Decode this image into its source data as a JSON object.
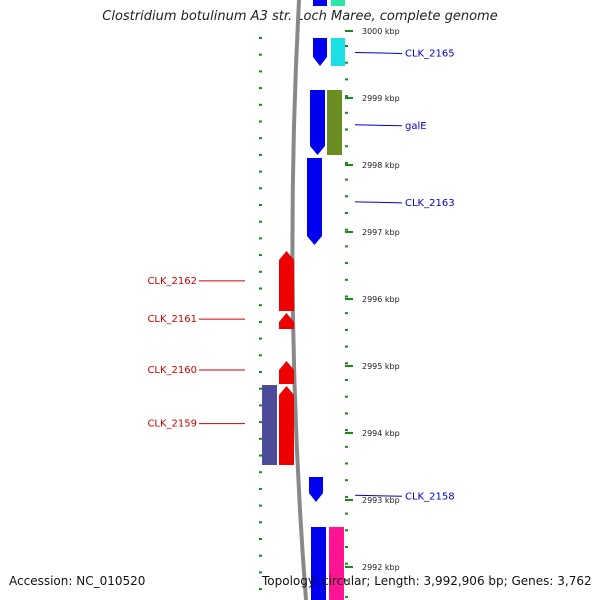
{
  "title": "Clostridium botulinum A3 str. Loch Maree, complete genome",
  "footer": {
    "accession": "Accession: NC_010520",
    "topology": "Topology: circular; Length: 3,992,906 bp; Genes: 3,762"
  },
  "ruler": {
    "unit": "kbp",
    "ticks": [
      {
        "kbp": 3000,
        "label": "3000 kbp"
      },
      {
        "kbp": 2999,
        "label": "2999 kbp"
      },
      {
        "kbp": 2998,
        "label": "2998 kbp"
      },
      {
        "kbp": 2997,
        "label": "2997 kbp"
      },
      {
        "kbp": 2996,
        "label": "2996 kbp"
      },
      {
        "kbp": 2995,
        "label": "2995 kbp"
      },
      {
        "kbp": 2994,
        "label": "2994 kbp"
      },
      {
        "kbp": 2993,
        "label": "2993 kbp"
      },
      {
        "kbp": 2992,
        "label": "2992 kbp"
      }
    ]
  },
  "forward_labels": [
    {
      "kbp": 2999.68,
      "text": "CLK_2165"
    },
    {
      "kbp": 2998.6,
      "text": "galE"
    },
    {
      "kbp": 2997.45,
      "text": "CLK_2163"
    },
    {
      "kbp": 2993.07,
      "text": "CLK_2158"
    }
  ],
  "reverse_labels": [
    {
      "kbp": 2996.27,
      "text": "CLK_2162"
    },
    {
      "kbp": 2995.7,
      "text": "CLK_2161"
    },
    {
      "kbp": 2994.94,
      "text": "CLK_2160"
    },
    {
      "kbp": 2994.14,
      "text": "CLK_2159"
    }
  ],
  "colors": {
    "backbone": "#888888",
    "forward_gene": "#0000ee",
    "reverse_gene": "#ee0000",
    "cds_forward_cyan": "#18e0e6",
    "cds_forward_olive": "#6b8e23",
    "cds_reverse_purple": "#4b4b9a",
    "cds_forward_pink": "#ff1493",
    "cds_teal": "#2ee6a8",
    "ruler_tick": "#1a8a1a",
    "forward_label": "#0000cc",
    "reverse_label": "#cc0000"
  }
}
